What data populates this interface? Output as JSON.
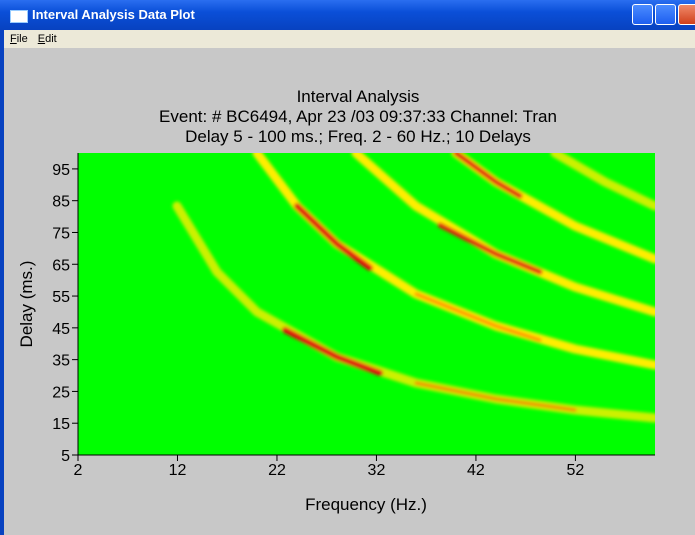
{
  "window": {
    "title": "Interval Analysis Data Plot"
  },
  "menu": [
    "File",
    "Edit"
  ],
  "chart_data": {
    "type": "heatmap",
    "title": "Interval Analysis",
    "subtitle": [
      "Event: # BC6494, Apr 23 /03 09:37:33  Channel: Tran",
      "Delay 5 - 100 ms.; Freq. 2 - 60 Hz.; 10 Delays"
    ],
    "x_label": "Frequency (Hz.)",
    "y_label": "Delay (ms.)",
    "xlim": [
      2,
      60
    ],
    "xticks": [
      2,
      12,
      22,
      32,
      42,
      52
    ],
    "ylim": [
      5,
      100
    ],
    "yticks": [
      5,
      15,
      25,
      35,
      45,
      55,
      65,
      75,
      85,
      95
    ],
    "background": "#00ff00"
  }
}
